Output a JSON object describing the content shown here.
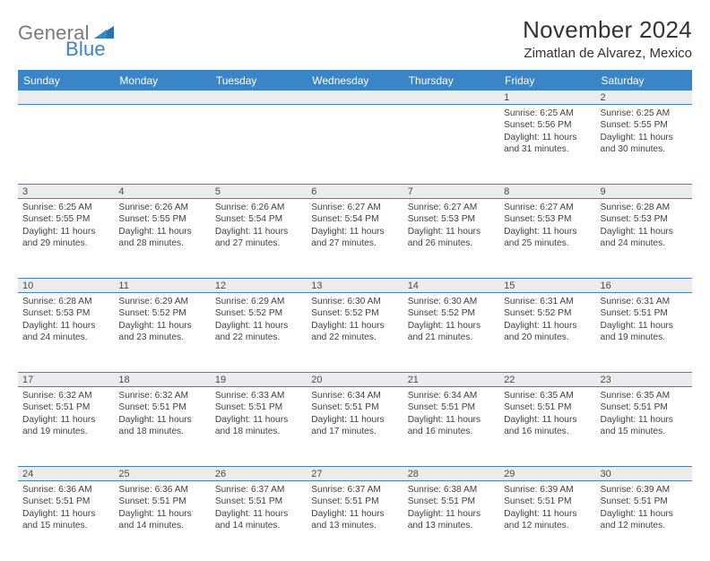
{
  "logo": {
    "gray": "General",
    "blue": "Blue"
  },
  "title": "November 2024",
  "location": "Zimatlan de Alvarez, Mexico",
  "colors": {
    "header_bg": "#3a85c6",
    "daynum_bg": "#ececec",
    "border": "#3a85c6",
    "text": "#333333",
    "logo_gray": "#7a7a7a",
    "logo_blue": "#3a85c6"
  },
  "weekdays": [
    "Sunday",
    "Monday",
    "Tuesday",
    "Wednesday",
    "Thursday",
    "Friday",
    "Saturday"
  ],
  "weeks": [
    {
      "nums": [
        "",
        "",
        "",
        "",
        "",
        "1",
        "2"
      ],
      "cells": [
        null,
        null,
        null,
        null,
        null,
        {
          "sunrise": "6:25 AM",
          "sunset": "5:56 PM",
          "daylight": "11 hours and 31 minutes."
        },
        {
          "sunrise": "6:25 AM",
          "sunset": "5:55 PM",
          "daylight": "11 hours and 30 minutes."
        }
      ]
    },
    {
      "nums": [
        "3",
        "4",
        "5",
        "6",
        "7",
        "8",
        "9"
      ],
      "cells": [
        {
          "sunrise": "6:25 AM",
          "sunset": "5:55 PM",
          "daylight": "11 hours and 29 minutes."
        },
        {
          "sunrise": "6:26 AM",
          "sunset": "5:55 PM",
          "daylight": "11 hours and 28 minutes."
        },
        {
          "sunrise": "6:26 AM",
          "sunset": "5:54 PM",
          "daylight": "11 hours and 27 minutes."
        },
        {
          "sunrise": "6:27 AM",
          "sunset": "5:54 PM",
          "daylight": "11 hours and 27 minutes."
        },
        {
          "sunrise": "6:27 AM",
          "sunset": "5:53 PM",
          "daylight": "11 hours and 26 minutes."
        },
        {
          "sunrise": "6:27 AM",
          "sunset": "5:53 PM",
          "daylight": "11 hours and 25 minutes."
        },
        {
          "sunrise": "6:28 AM",
          "sunset": "5:53 PM",
          "daylight": "11 hours and 24 minutes."
        }
      ]
    },
    {
      "nums": [
        "10",
        "11",
        "12",
        "13",
        "14",
        "15",
        "16"
      ],
      "cells": [
        {
          "sunrise": "6:28 AM",
          "sunset": "5:53 PM",
          "daylight": "11 hours and 24 minutes."
        },
        {
          "sunrise": "6:29 AM",
          "sunset": "5:52 PM",
          "daylight": "11 hours and 23 minutes."
        },
        {
          "sunrise": "6:29 AM",
          "sunset": "5:52 PM",
          "daylight": "11 hours and 22 minutes."
        },
        {
          "sunrise": "6:30 AM",
          "sunset": "5:52 PM",
          "daylight": "11 hours and 22 minutes."
        },
        {
          "sunrise": "6:30 AM",
          "sunset": "5:52 PM",
          "daylight": "11 hours and 21 minutes."
        },
        {
          "sunrise": "6:31 AM",
          "sunset": "5:52 PM",
          "daylight": "11 hours and 20 minutes."
        },
        {
          "sunrise": "6:31 AM",
          "sunset": "5:51 PM",
          "daylight": "11 hours and 19 minutes."
        }
      ]
    },
    {
      "nums": [
        "17",
        "18",
        "19",
        "20",
        "21",
        "22",
        "23"
      ],
      "cells": [
        {
          "sunrise": "6:32 AM",
          "sunset": "5:51 PM",
          "daylight": "11 hours and 19 minutes."
        },
        {
          "sunrise": "6:32 AM",
          "sunset": "5:51 PM",
          "daylight": "11 hours and 18 minutes."
        },
        {
          "sunrise": "6:33 AM",
          "sunset": "5:51 PM",
          "daylight": "11 hours and 18 minutes."
        },
        {
          "sunrise": "6:34 AM",
          "sunset": "5:51 PM",
          "daylight": "11 hours and 17 minutes."
        },
        {
          "sunrise": "6:34 AM",
          "sunset": "5:51 PM",
          "daylight": "11 hours and 16 minutes."
        },
        {
          "sunrise": "6:35 AM",
          "sunset": "5:51 PM",
          "daylight": "11 hours and 16 minutes."
        },
        {
          "sunrise": "6:35 AM",
          "sunset": "5:51 PM",
          "daylight": "11 hours and 15 minutes."
        }
      ]
    },
    {
      "nums": [
        "24",
        "25",
        "26",
        "27",
        "28",
        "29",
        "30"
      ],
      "cells": [
        {
          "sunrise": "6:36 AM",
          "sunset": "5:51 PM",
          "daylight": "11 hours and 15 minutes."
        },
        {
          "sunrise": "6:36 AM",
          "sunset": "5:51 PM",
          "daylight": "11 hours and 14 minutes."
        },
        {
          "sunrise": "6:37 AM",
          "sunset": "5:51 PM",
          "daylight": "11 hours and 14 minutes."
        },
        {
          "sunrise": "6:37 AM",
          "sunset": "5:51 PM",
          "daylight": "11 hours and 13 minutes."
        },
        {
          "sunrise": "6:38 AM",
          "sunset": "5:51 PM",
          "daylight": "11 hours and 13 minutes."
        },
        {
          "sunrise": "6:39 AM",
          "sunset": "5:51 PM",
          "daylight": "11 hours and 12 minutes."
        },
        {
          "sunrise": "6:39 AM",
          "sunset": "5:51 PM",
          "daylight": "11 hours and 12 minutes."
        }
      ]
    }
  ],
  "labels": {
    "sunrise": "Sunrise: ",
    "sunset": "Sunset: ",
    "daylight": "Daylight: "
  }
}
